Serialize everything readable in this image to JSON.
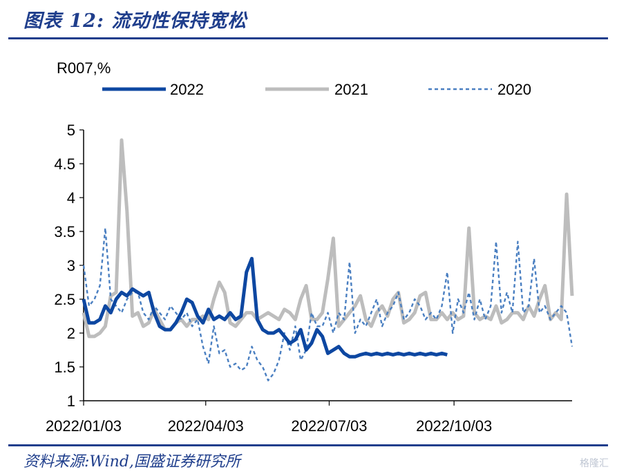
{
  "header": {
    "title": "图表 12:  流动性保持宽松"
  },
  "footer": {
    "source": "资料来源:Wind,国盛证券研究所",
    "watermark": "格隆汇"
  },
  "chart_data": {
    "type": "line",
    "ylabel": "R007,%",
    "ylim": [
      1,
      5
    ],
    "yticks": [
      "5",
      "4.5",
      "4",
      "3.5",
      "3",
      "2.5",
      "2",
      "1.5",
      "1"
    ],
    "xticks": [
      "2022/01/03",
      "2022/04/03",
      "2022/07/03",
      "2022/10/03"
    ],
    "xlim": [
      0,
      360
    ],
    "grid": false,
    "legend_position": "top",
    "series": [
      {
        "name": "2022",
        "color": "#0d47a1",
        "style": "solid-thick",
        "x": [
          0,
          4,
          8,
          12,
          16,
          20,
          24,
          28,
          32,
          36,
          40,
          44,
          48,
          52,
          56,
          60,
          64,
          68,
          72,
          76,
          80,
          84,
          88,
          92,
          96,
          100,
          104,
          108,
          112,
          116,
          120,
          124,
          128,
          132,
          136,
          140,
          144,
          148,
          152,
          156,
          160,
          164,
          168,
          172,
          176,
          180,
          184,
          188,
          192,
          196,
          200,
          204,
          208,
          212,
          216,
          220,
          224,
          228,
          232,
          236,
          240,
          244,
          248,
          252,
          256,
          260,
          264,
          268
        ],
        "y": [
          2.5,
          2.15,
          2.15,
          2.2,
          2.4,
          2.3,
          2.5,
          2.6,
          2.55,
          2.65,
          2.6,
          2.55,
          2.6,
          2.3,
          2.1,
          2.05,
          2.05,
          2.15,
          2.3,
          2.5,
          2.45,
          2.25,
          2.15,
          2.35,
          2.2,
          2.25,
          2.2,
          2.3,
          2.2,
          2.25,
          2.9,
          3.1,
          2.2,
          2.05,
          2.0,
          2.0,
          2.05,
          1.95,
          1.85,
          1.9,
          2.05,
          1.75,
          1.85,
          2.05,
          1.95,
          1.7,
          1.75,
          1.8,
          1.7,
          1.65,
          1.65,
          1.68,
          1.7,
          1.68,
          1.7,
          1.68,
          1.7,
          1.68,
          1.7,
          1.68,
          1.7,
          1.68,
          1.7,
          1.68,
          1.7,
          1.68,
          1.7,
          1.68
        ]
      },
      {
        "name": "2021",
        "color": "#bdbdbd",
        "style": "solid-thick",
        "x": [
          0,
          4,
          8,
          12,
          16,
          20,
          24,
          28,
          32,
          36,
          40,
          44,
          48,
          52,
          56,
          60,
          64,
          68,
          72,
          76,
          80,
          84,
          88,
          92,
          96,
          100,
          104,
          108,
          112,
          116,
          120,
          124,
          128,
          132,
          136,
          140,
          144,
          148,
          152,
          156,
          160,
          164,
          168,
          172,
          176,
          180,
          184,
          188,
          192,
          196,
          200,
          204,
          208,
          212,
          216,
          220,
          224,
          228,
          232,
          236,
          240,
          244,
          248,
          252,
          256,
          260,
          264,
          268,
          272,
          276,
          280,
          284,
          288,
          292,
          296,
          300,
          304,
          308,
          312,
          316,
          320,
          324,
          328,
          332,
          336,
          340,
          344,
          348,
          352,
          356,
          360
        ],
        "y": [
          2.3,
          1.95,
          1.95,
          2.0,
          2.1,
          2.55,
          2.6,
          4.85,
          3.8,
          2.25,
          2.3,
          2.1,
          2.15,
          2.35,
          2.2,
          2.05,
          2.05,
          2.15,
          2.2,
          2.1,
          2.2,
          2.2,
          2.25,
          2.2,
          2.5,
          2.75,
          2.6,
          2.15,
          2.1,
          2.2,
          2.3,
          2.3,
          2.2,
          2.25,
          2.3,
          2.25,
          2.2,
          2.35,
          2.3,
          2.2,
          2.5,
          2.7,
          2.2,
          2.2,
          2.3,
          2.8,
          3.4,
          2.1,
          2.2,
          2.3,
          2.4,
          2.55,
          2.2,
          2.1,
          2.3,
          2.4,
          2.25,
          2.5,
          2.6,
          2.15,
          2.2,
          2.3,
          2.55,
          2.6,
          2.2,
          2.2,
          2.3,
          2.2,
          2.3,
          2.2,
          2.25,
          3.55,
          2.3,
          2.2,
          2.25,
          2.2,
          2.4,
          2.15,
          2.2,
          2.3,
          2.3,
          2.2,
          2.4,
          2.25,
          2.5,
          2.7,
          2.2,
          2.3,
          2.2,
          4.05,
          2.55
        ]
      },
      {
        "name": "2020",
        "color": "#4a7fc1",
        "style": "dashed",
        "x": [
          0,
          4,
          8,
          12,
          16,
          20,
          24,
          28,
          32,
          36,
          40,
          44,
          48,
          52,
          56,
          60,
          64,
          68,
          72,
          76,
          80,
          84,
          88,
          92,
          96,
          100,
          104,
          108,
          112,
          116,
          120,
          124,
          128,
          132,
          136,
          140,
          144,
          148,
          152,
          156,
          160,
          164,
          168,
          172,
          176,
          180,
          184,
          188,
          192,
          196,
          200,
          204,
          208,
          212,
          216,
          220,
          224,
          228,
          232,
          236,
          240,
          244,
          248,
          252,
          256,
          260,
          264,
          268,
          272,
          276,
          280,
          284,
          288,
          292,
          296,
          300,
          304,
          308,
          312,
          316,
          320,
          324,
          328,
          332,
          336,
          340,
          344,
          348,
          352,
          356,
          360
        ],
        "y": [
          3.0,
          2.4,
          2.5,
          2.7,
          3.55,
          2.5,
          2.4,
          2.3,
          2.5,
          2.6,
          2.6,
          2.3,
          2.2,
          2.4,
          2.3,
          2.2,
          2.4,
          2.3,
          2.2,
          2.3,
          2.1,
          2.2,
          1.8,
          1.55,
          2.1,
          1.7,
          1.75,
          1.5,
          1.55,
          1.45,
          1.5,
          1.8,
          1.6,
          1.5,
          1.3,
          1.4,
          1.6,
          2.0,
          1.75,
          2.1,
          1.6,
          1.75,
          2.3,
          2.1,
          2.1,
          2.3,
          2.0,
          2.3,
          2.2,
          3.05,
          2.0,
          2.2,
          2.1,
          2.3,
          2.5,
          2.1,
          2.3,
          2.4,
          2.6,
          2.2,
          2.3,
          2.5,
          2.4,
          2.2,
          2.3,
          2.2,
          2.4,
          2.9,
          2.0,
          2.5,
          2.3,
          2.6,
          2.2,
          2.5,
          2.2,
          2.4,
          3.35,
          2.3,
          2.6,
          2.3,
          3.35,
          2.3,
          2.4,
          3.1,
          2.3,
          2.4,
          2.2,
          2.3,
          2.4,
          2.3,
          1.8
        ]
      }
    ]
  }
}
